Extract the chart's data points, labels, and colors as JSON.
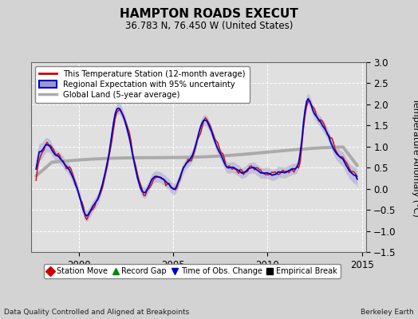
{
  "title": "HAMPTON ROADS EXECUT",
  "subtitle": "36.783 N, 76.450 W (United States)",
  "ylabel": "Temperature Anomaly (°C)",
  "xlabel_left": "Data Quality Controlled and Aligned at Breakpoints",
  "xlabel_right": "Berkeley Earth",
  "ylim": [
    -1.5,
    3.0
  ],
  "xlim": [
    1997.5,
    2015.2
  ],
  "yticks": [
    -1.5,
    -1.0,
    -0.5,
    0.0,
    0.5,
    1.0,
    1.5,
    2.0,
    2.5,
    3.0
  ],
  "xticks": [
    2000,
    2005,
    2010,
    2015
  ],
  "bg_color": "#d3d3d3",
  "plot_bg_color": "#e0e0e0",
  "grid_color": "#ffffff",
  "red_color": "#cc0000",
  "blue_color": "#0000cc",
  "blue_fill_color": "#9999cc",
  "gray_color": "#aaaaaa",
  "legend_items": [
    "This Temperature Station (12-month average)",
    "Regional Expectation with 95% uncertainty",
    "Global Land (5-year average)"
  ],
  "bottom_legend": [
    {
      "label": "Station Move",
      "color": "#cc0000",
      "marker": "D"
    },
    {
      "label": "Record Gap",
      "color": "#008800",
      "marker": "^"
    },
    {
      "label": "Time of Obs. Change",
      "color": "#0000cc",
      "marker": "v"
    },
    {
      "label": "Empirical Break",
      "color": "#000000",
      "marker": "s"
    }
  ]
}
